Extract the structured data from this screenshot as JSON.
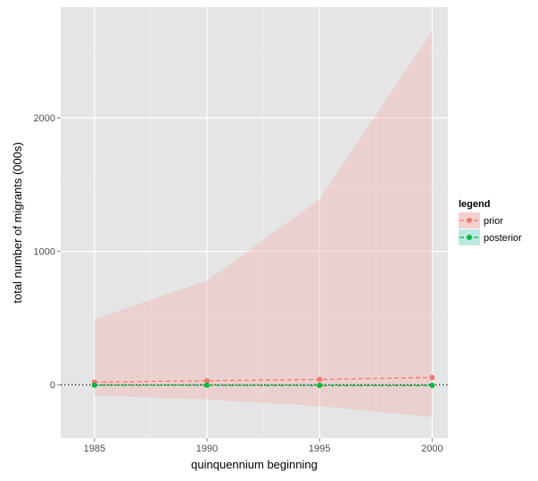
{
  "chart_data": {
    "type": "line",
    "xlabel": "quinquennium beginning",
    "ylabel": "total number of migrants (000s)",
    "x": [
      1985,
      1990,
      1995,
      2000
    ],
    "xlim": [
      1983.5,
      2000.7
    ],
    "ylim": [
      -400,
      2830
    ],
    "xticks": [
      1985,
      1990,
      1995,
      2000
    ],
    "yticks": [
      0,
      1000,
      2000
    ],
    "xticks_labels": [
      "1985",
      "1990",
      "1995",
      "2000"
    ],
    "yticks_labels": [
      "0",
      "1000",
      "2000"
    ],
    "reference_line": 0,
    "grid": true,
    "series": [
      {
        "name": "prior",
        "values": [
          20,
          30,
          40,
          55
        ],
        "lower": [
          -80,
          -110,
          -160,
          -240
        ],
        "upper": [
          490,
          780,
          1390,
          2650
        ],
        "color": "#f8766d",
        "band_color": "#f4a9a3",
        "linestyle": "dashed"
      },
      {
        "name": "posterior",
        "values": [
          -3,
          -3,
          -5,
          -5
        ],
        "lower": [
          -6,
          -6,
          -8,
          -8
        ],
        "upper": [
          2,
          2,
          0,
          0
        ],
        "color": "#00ba38",
        "band_color": "#7fdcd0",
        "linestyle": "dashed"
      }
    ],
    "legend": {
      "title": "legend",
      "position": "right",
      "entries": [
        "prior",
        "posterior"
      ]
    },
    "colors": {
      "panel": "#e5e5e5",
      "grid_major": "#ffffff",
      "grid_minor": "#f2f2f2"
    }
  }
}
